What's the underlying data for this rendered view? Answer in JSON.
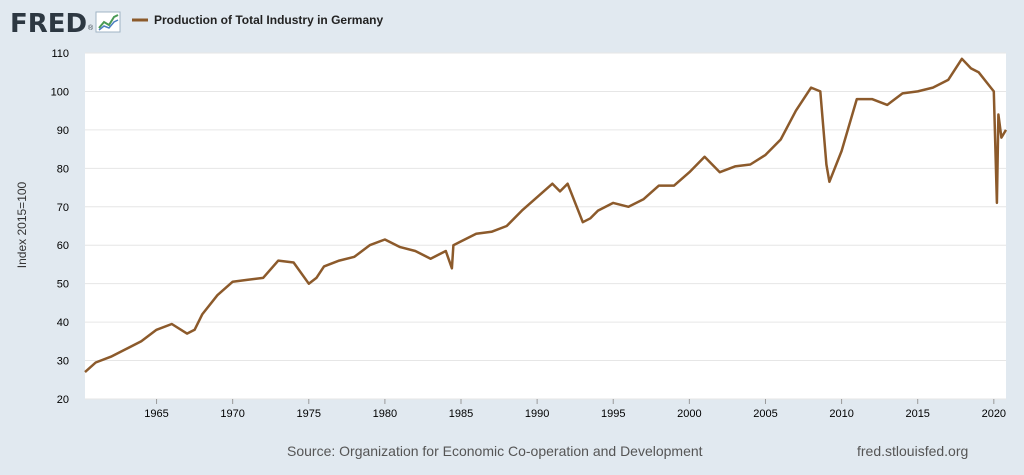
{
  "header": {
    "logo_text": "FRED",
    "logo_registered": "®",
    "legend_label": "Production of Total Industry in Germany"
  },
  "footer": {
    "source": "Source: Organization for Economic Co-operation and Development",
    "site": "fred.stlouisfed.org"
  },
  "colors": {
    "background": "#e1e9f0",
    "plot_background": "#ffffff",
    "series": "#8c5a2b",
    "grid": "#e6e6e6",
    "logo": "#2d3842"
  },
  "chart_data": {
    "type": "line",
    "title": "",
    "xlabel": "",
    "ylabel": "Index 2015=100",
    "xlim": [
      1960.3,
      2020.8
    ],
    "ylim": [
      20,
      110
    ],
    "grid": "horizontal",
    "legend_position": "top-left",
    "x_ticks": [
      "1965",
      "1970",
      "1975",
      "1980",
      "1985",
      "1990",
      "1995",
      "2000",
      "2005",
      "2010",
      "2015",
      "2020"
    ],
    "y_ticks": [
      "20",
      "30",
      "40",
      "50",
      "60",
      "70",
      "80",
      "90",
      "100",
      "110"
    ],
    "series": [
      {
        "name": "Production of Total Industry in Germany",
        "x": [
          1960.3,
          1961.0,
          1962.0,
          1963.0,
          1964.0,
          1965.0,
          1966.0,
          1967.0,
          1967.5,
          1968.0,
          1969.0,
          1970.0,
          1971.0,
          1972.0,
          1973.0,
          1974.0,
          1975.0,
          1975.5,
          1976.0,
          1977.0,
          1978.0,
          1979.0,
          1980.0,
          1981.0,
          1982.0,
          1983.0,
          1984.0,
          1984.4,
          1984.5,
          1985.0,
          1986.0,
          1987.0,
          1988.0,
          1989.0,
          1990.0,
          1991.0,
          1991.5,
          1992.0,
          1993.0,
          1993.5,
          1994.0,
          1995.0,
          1996.0,
          1997.0,
          1998.0,
          1999.0,
          2000.0,
          2001.0,
          2002.0,
          2003.0,
          2004.0,
          2005.0,
          2006.0,
          2007.0,
          2008.0,
          2008.6,
          2009.0,
          2009.2,
          2010.0,
          2011.0,
          2012.0,
          2013.0,
          2014.0,
          2015.0,
          2016.0,
          2017.0,
          2017.9,
          2018.5,
          2019.0,
          2019.8,
          2020.0,
          2020.2,
          2020.3,
          2020.5,
          2020.8
        ],
        "values": [
          27,
          29.5,
          31,
          33,
          35,
          38,
          39.5,
          37,
          38,
          42,
          47,
          50.5,
          51,
          51.5,
          56,
          55.5,
          50,
          51.5,
          54.5,
          56,
          57,
          60,
          61.5,
          59.5,
          58.5,
          56.5,
          58.5,
          54,
          60,
          61,
          63,
          63.5,
          65,
          69,
          72.5,
          76,
          74,
          76,
          66,
          67,
          69,
          71,
          70,
          72,
          75.5,
          75.5,
          79,
          83,
          79,
          80.5,
          81,
          83.5,
          87.5,
          95,
          101,
          100,
          81,
          76.5,
          84.5,
          98,
          98,
          96.5,
          99.5,
          100,
          101,
          103,
          108.5,
          106,
          105,
          101,
          100,
          71,
          94,
          88,
          90
        ]
      }
    ]
  }
}
